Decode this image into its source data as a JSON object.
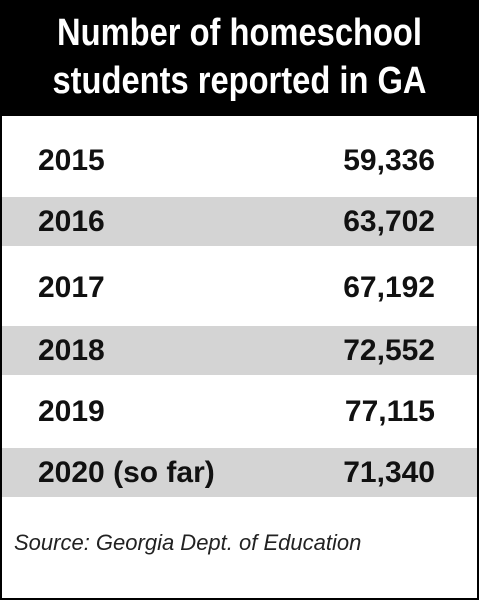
{
  "title": {
    "line1": "Number of homeschool",
    "line2": "students reported in GA"
  },
  "source": "Source: Georgia Dept. of Education",
  "colors": {
    "header_bg": "#000000",
    "header_text": "#ffffff",
    "shaded_row": "#d4d4d4"
  },
  "chart_data": {
    "type": "table",
    "title": "Number of homeschool students reported in GA",
    "categories": [
      "2015",
      "2016",
      "2017",
      "2018",
      "2019",
      "2020 (so far)"
    ],
    "values": [
      59336,
      63702,
      67192,
      72552,
      77115,
      71340
    ],
    "rows": [
      {
        "year": "2015",
        "value": "59,336"
      },
      {
        "year": "2016",
        "value": "63,702"
      },
      {
        "year": "2017",
        "value": "67,192"
      },
      {
        "year": "2018",
        "value": "72,552"
      },
      {
        "year": "2019",
        "value": "77,115"
      },
      {
        "year": "2020 (so far)",
        "value": "71,340"
      }
    ]
  }
}
